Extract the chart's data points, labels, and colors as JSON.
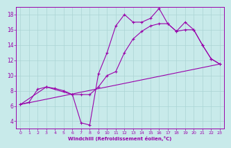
{
  "background_color": "#c8eaea",
  "grid_color": "#aad4d4",
  "line_color": "#9900aa",
  "xlabel": "Windchill (Refroidissement éolien,°C)",
  "xlim": [
    -0.5,
    23.5
  ],
  "ylim": [
    3.0,
    19.0
  ],
  "yticks": [
    4,
    6,
    8,
    10,
    12,
    14,
    16,
    18
  ],
  "xticks": [
    0,
    1,
    2,
    3,
    4,
    5,
    6,
    7,
    8,
    9,
    10,
    11,
    12,
    13,
    14,
    15,
    16,
    17,
    18,
    19,
    20,
    21,
    22,
    23
  ],
  "line1_x": [
    0,
    1,
    2,
    3,
    4,
    5,
    6,
    7,
    8,
    9,
    10,
    11,
    12,
    13,
    14,
    15,
    16,
    17,
    18,
    19,
    20,
    21,
    22,
    23
  ],
  "line1_y": [
    6.2,
    6.5,
    8.2,
    8.5,
    8.3,
    8.0,
    7.5,
    7.5,
    7.5,
    8.5,
    10.0,
    10.5,
    13.0,
    14.8,
    15.8,
    16.5,
    16.8,
    16.8,
    15.8,
    16.0,
    16.0,
    14.0,
    12.2,
    11.5
  ],
  "line2_x": [
    0,
    3,
    6,
    7,
    8,
    9,
    10,
    11,
    12,
    13,
    14,
    15,
    16,
    17,
    18,
    19,
    20,
    21,
    22,
    23
  ],
  "line2_y": [
    6.2,
    8.5,
    7.5,
    3.8,
    3.5,
    10.2,
    13.0,
    16.5,
    18.0,
    17.0,
    17.0,
    17.5,
    18.8,
    16.8,
    15.8,
    17.0,
    16.0,
    14.0,
    12.2,
    11.5
  ],
  "line3_x": [
    0,
    23
  ],
  "line3_y": [
    6.2,
    11.5
  ]
}
